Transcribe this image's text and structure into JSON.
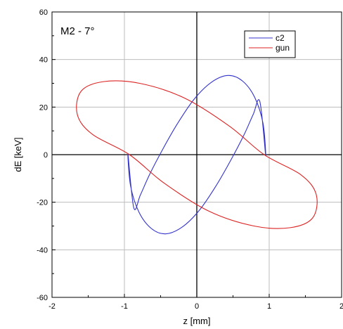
{
  "chart_data": {
    "type": "line",
    "title": "",
    "annotation": "M2  - 7°",
    "xlabel": "z [mm]",
    "ylabel": "dE [keV]",
    "xlim": [
      -2,
      2
    ],
    "ylim": [
      -60,
      60
    ],
    "xticks": [
      -2,
      -1,
      0,
      1,
      2
    ],
    "yticks": [
      -60,
      -40,
      -20,
      0,
      20,
      40,
      60
    ],
    "grid": true,
    "legend_position": "top-right",
    "series": [
      {
        "name": "c2",
        "color": "#3333cc",
        "x": [
          0.95,
          0.915,
          0.8,
          0.63,
          0.43,
          0.2,
          -0.04,
          -0.27,
          -0.47,
          -0.65,
          -0.78,
          -0.87,
          -0.95,
          -0.915,
          -0.8,
          -0.63,
          -0.43,
          -0.2,
          0.04,
          0.27,
          0.47,
          0.65,
          0.78,
          0.87,
          0.95
        ],
        "y": [
          0,
          13.1,
          24.1,
          31.0,
          33.3,
          30.4,
          23.2,
          12.9,
          2.3,
          -8.2,
          -17.0,
          -22.4,
          0,
          -13.1,
          -24.1,
          -31.0,
          -33.3,
          -30.4,
          -23.2,
          -12.9,
          -2.3,
          8.2,
          17.0,
          22.4,
          0
        ]
      },
      {
        "name": "gun",
        "color": "#dd2222",
        "x": [
          0.93,
          0.45,
          -0.17,
          -0.79,
          -1.29,
          -1.6,
          -1.65,
          -1.44,
          -0.93,
          -0.45,
          0.17,
          0.79,
          1.29,
          1.6,
          1.65,
          1.44,
          0.93
        ],
        "y": [
          0,
          12.0,
          23.8,
          30.0,
          30.7,
          26.6,
          16.8,
          8.5,
          0,
          -12.0,
          -23.8,
          -30.0,
          -30.7,
          -26.6,
          -16.8,
          -8.5,
          0
        ]
      }
    ]
  }
}
